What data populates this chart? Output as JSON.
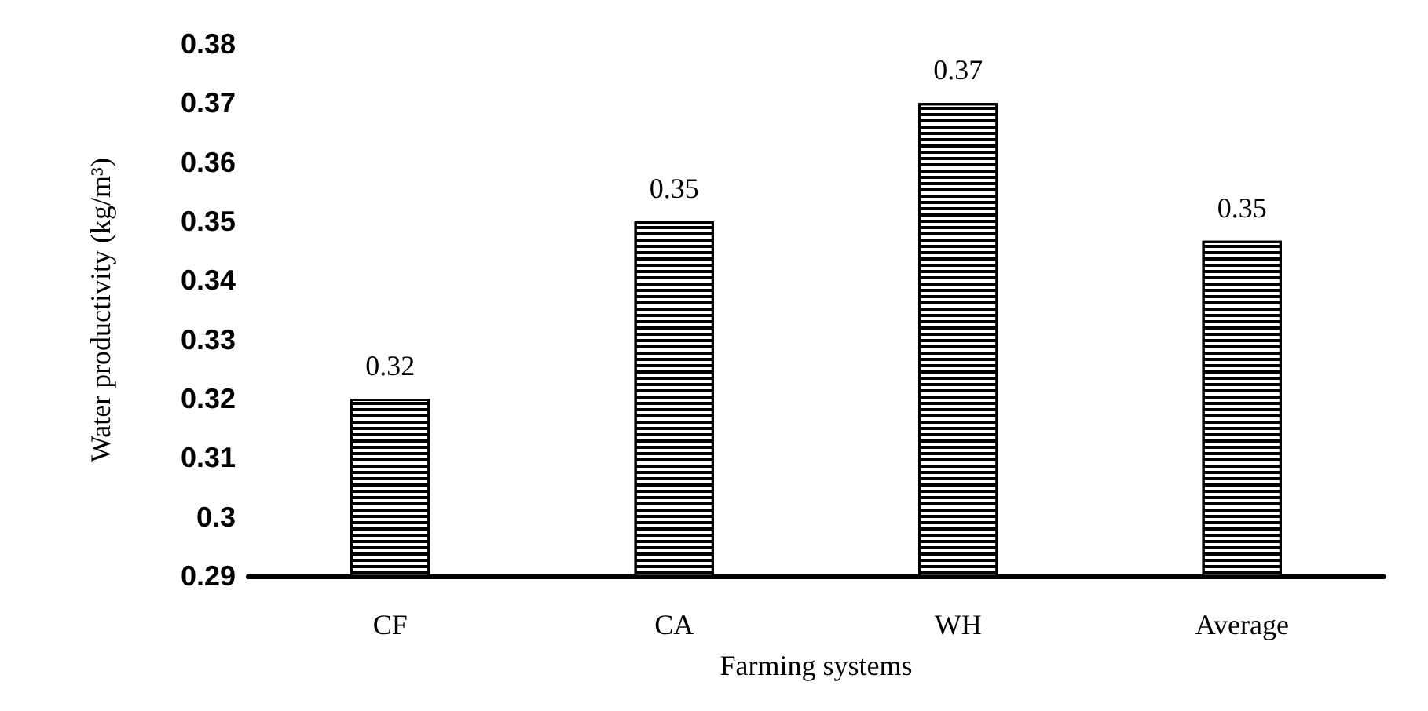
{
  "chart_data": {
    "type": "bar",
    "xlabel": "Farming systems",
    "ylabel": "Water productivity (kg/m³)",
    "categories": [
      "CF",
      "CA",
      "WH",
      "Average"
    ],
    "values": [
      0.32,
      0.35,
      0.37,
      0.3467
    ],
    "value_labels": [
      "0.32",
      "0.35",
      "0.37",
      "0.35"
    ],
    "color": "#000000",
    "ylim": [
      0.29,
      0.38
    ],
    "yticks": [
      0.29,
      0.3,
      0.31,
      0.32,
      0.33,
      0.34,
      0.35,
      0.36,
      0.37,
      0.38
    ],
    "grid": false
  }
}
